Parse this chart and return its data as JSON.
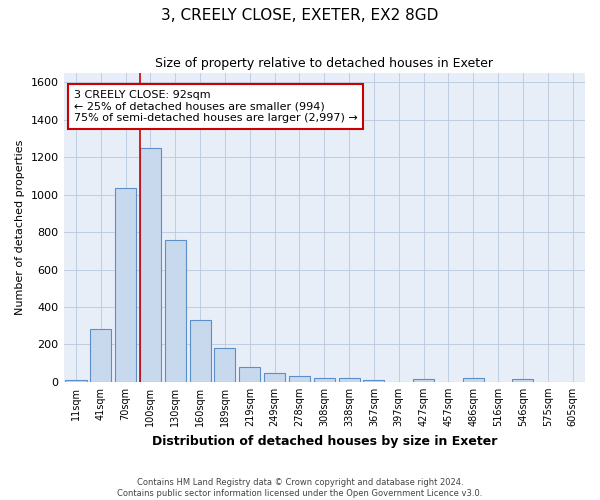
{
  "title": "3, CREELY CLOSE, EXETER, EX2 8GD",
  "subtitle": "Size of property relative to detached houses in Exeter",
  "xlabel": "Distribution of detached houses by size in Exeter",
  "ylabel": "Number of detached properties",
  "footer_line1": "Contains HM Land Registry data © Crown copyright and database right 2024.",
  "footer_line2": "Contains public sector information licensed under the Open Government Licence v3.0.",
  "categories": [
    "11sqm",
    "41sqm",
    "70sqm",
    "100sqm",
    "130sqm",
    "160sqm",
    "189sqm",
    "219sqm",
    "249sqm",
    "278sqm",
    "308sqm",
    "338sqm",
    "367sqm",
    "397sqm",
    "427sqm",
    "457sqm",
    "486sqm",
    "516sqm",
    "546sqm",
    "575sqm",
    "605sqm"
  ],
  "values": [
    10,
    280,
    1035,
    1250,
    760,
    330,
    180,
    80,
    47,
    33,
    22,
    18,
    10,
    0,
    13,
    0,
    18,
    0,
    13,
    0,
    0
  ],
  "bar_color": "#c9d9ed",
  "bar_edge_color": "#5b8fc9",
  "bar_linewidth": 0.8,
  "grid_color": "#b8c8dc",
  "bg_color": "#e8eef8",
  "ylim": [
    0,
    1650
  ],
  "yticks": [
    0,
    200,
    400,
    600,
    800,
    1000,
    1200,
    1400,
    1600
  ],
  "red_line_color": "#cc0000",
  "annotation_text": "3 CREELY CLOSE: 92sqm\n← 25% of detached houses are smaller (994)\n75% of semi-detached houses are larger (2,997) →"
}
